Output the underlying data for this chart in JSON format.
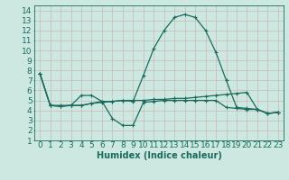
{
  "title": "",
  "xlabel": "Humidex (Indice chaleur)",
  "background_color": "#cce8e0",
  "grid_color": "#b8d8d0",
  "line_color": "#1a6b5e",
  "xlim": [
    -0.5,
    23.5
  ],
  "ylim": [
    1,
    14.5
  ],
  "xticks": [
    0,
    1,
    2,
    3,
    4,
    5,
    6,
    7,
    8,
    9,
    10,
    11,
    12,
    13,
    14,
    15,
    16,
    17,
    18,
    19,
    20,
    21,
    22,
    23
  ],
  "yticks": [
    1,
    2,
    3,
    4,
    5,
    6,
    7,
    8,
    9,
    10,
    11,
    12,
    13,
    14
  ],
  "line1_x": [
    0,
    1,
    2,
    3,
    4,
    5,
    6,
    7,
    8,
    9,
    10,
    11,
    12,
    13,
    14,
    15,
    16,
    17,
    18,
    19,
    20,
    21,
    22,
    23
  ],
  "line1_y": [
    7.7,
    4.5,
    4.5,
    4.5,
    4.5,
    4.7,
    4.8,
    4.9,
    5.0,
    5.0,
    5.0,
    5.1,
    5.1,
    5.2,
    5.2,
    5.3,
    5.4,
    5.5,
    5.6,
    5.7,
    5.8,
    4.1,
    3.7,
    3.8
  ],
  "line2_x": [
    0,
    1,
    2,
    3,
    4,
    5,
    6,
    7,
    8,
    9,
    10,
    11,
    12,
    13,
    14,
    15,
    16,
    17,
    18,
    19,
    20,
    21,
    22,
    23
  ],
  "line2_y": [
    7.7,
    4.5,
    4.4,
    4.5,
    5.5,
    5.5,
    4.9,
    3.2,
    2.5,
    2.5,
    4.8,
    4.9,
    5.0,
    5.0,
    5.0,
    5.0,
    5.0,
    5.0,
    4.3,
    4.2,
    4.1,
    4.1,
    3.7,
    3.8
  ],
  "line3_x": [
    0,
    1,
    2,
    3,
    4,
    5,
    6,
    7,
    8,
    9,
    10,
    11,
    12,
    13,
    14,
    15,
    16,
    17,
    18,
    19,
    20,
    21,
    22,
    23
  ],
  "line3_y": [
    7.7,
    4.5,
    4.4,
    4.5,
    4.5,
    4.7,
    4.9,
    4.9,
    5.0,
    4.9,
    7.5,
    10.2,
    12.0,
    13.3,
    13.6,
    13.3,
    12.0,
    9.8,
    7.0,
    4.3,
    4.2,
    4.1,
    3.7,
    3.8
  ],
  "fontsize_label": 7,
  "fontsize_tick": 6.5
}
